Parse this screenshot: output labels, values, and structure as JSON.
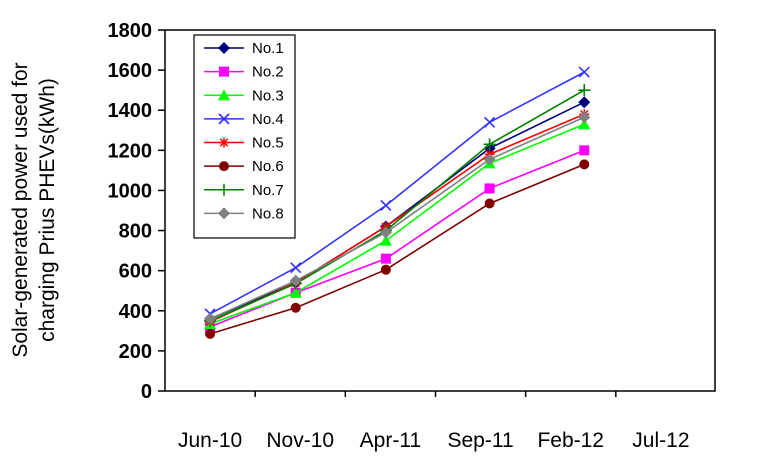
{
  "chart_data": {
    "type": "line",
    "title": "",
    "xlabel": "",
    "ylabel_lines": [
      "Solar-generated power used for",
      "charging Prius PHEVs(kWh)"
    ],
    "x_ticks": [
      "Jun-10",
      "Nov-10",
      "Apr-11",
      "Sep-11",
      "Feb-12",
      "Jul-12"
    ],
    "x_positions": [
      0.5,
      1.45,
      2.45,
      3.6,
      4.65
    ],
    "ylim": [
      0,
      1800
    ],
    "y_ticks": [
      0,
      200,
      400,
      600,
      800,
      1000,
      1200,
      1400,
      1600,
      1800
    ],
    "grid": false,
    "legend_position": "top-left",
    "series": [
      {
        "name": "No.1",
        "color": "#00007f",
        "marker": "diamond",
        "values": [
          360,
          540,
          820,
          1210,
          1440
        ]
      },
      {
        "name": "No.2",
        "color": "#ff00ff",
        "marker": "square",
        "values": [
          320,
          490,
          660,
          1010,
          1200
        ]
      },
      {
        "name": "No.3",
        "color": "#00ff00",
        "marker": "triangle",
        "values": [
          335,
          490,
          750,
          1135,
          1330
        ]
      },
      {
        "name": "No.4",
        "color": "#3333ff",
        "marker": "x",
        "values": [
          385,
          615,
          925,
          1340,
          1590
        ]
      },
      {
        "name": "No.5",
        "color": "#ff0000",
        "marker": "star",
        "values": [
          345,
          540,
          820,
          1180,
          1380
        ]
      },
      {
        "name": "No.6",
        "color": "#800000",
        "marker": "circle",
        "values": [
          285,
          415,
          605,
          935,
          1130
        ]
      },
      {
        "name": "No.7",
        "color": "#008000",
        "marker": "plus",
        "values": [
          350,
          535,
          800,
          1230,
          1500
        ]
      },
      {
        "name": "No.8",
        "color": "#808080",
        "marker": "diamond",
        "values": [
          360,
          550,
          790,
          1155,
          1365
        ]
      }
    ]
  }
}
